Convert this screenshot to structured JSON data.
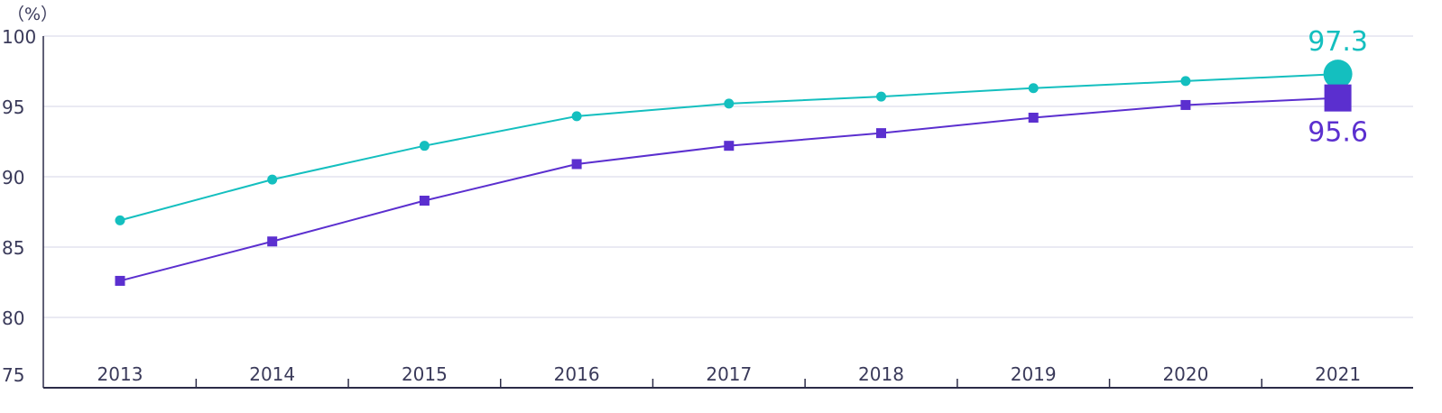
{
  "chart_data": {
    "type": "line",
    "unit_label": "（%）",
    "categories": [
      "2013",
      "2014",
      "2015",
      "2016",
      "2017",
      "2018",
      "2019",
      "2020",
      "2021"
    ],
    "ylim": [
      75,
      100
    ],
    "yticks": [
      "75",
      "80",
      "85",
      "90",
      "95",
      "100"
    ],
    "grid": true,
    "series": [
      {
        "key": "teal",
        "color": "#14bfbf",
        "marker": "circle",
        "values": [
          86.9,
          89.8,
          92.2,
          94.3,
          95.2,
          95.7,
          96.3,
          96.8,
          97.3
        ],
        "end_label": "97.3"
      },
      {
        "key": "purple",
        "color": "#5b2fcf",
        "marker": "square",
        "values": [
          82.6,
          85.4,
          88.3,
          90.9,
          92.2,
          93.1,
          94.2,
          95.1,
          95.6
        ],
        "end_label": "95.6"
      }
    ]
  }
}
